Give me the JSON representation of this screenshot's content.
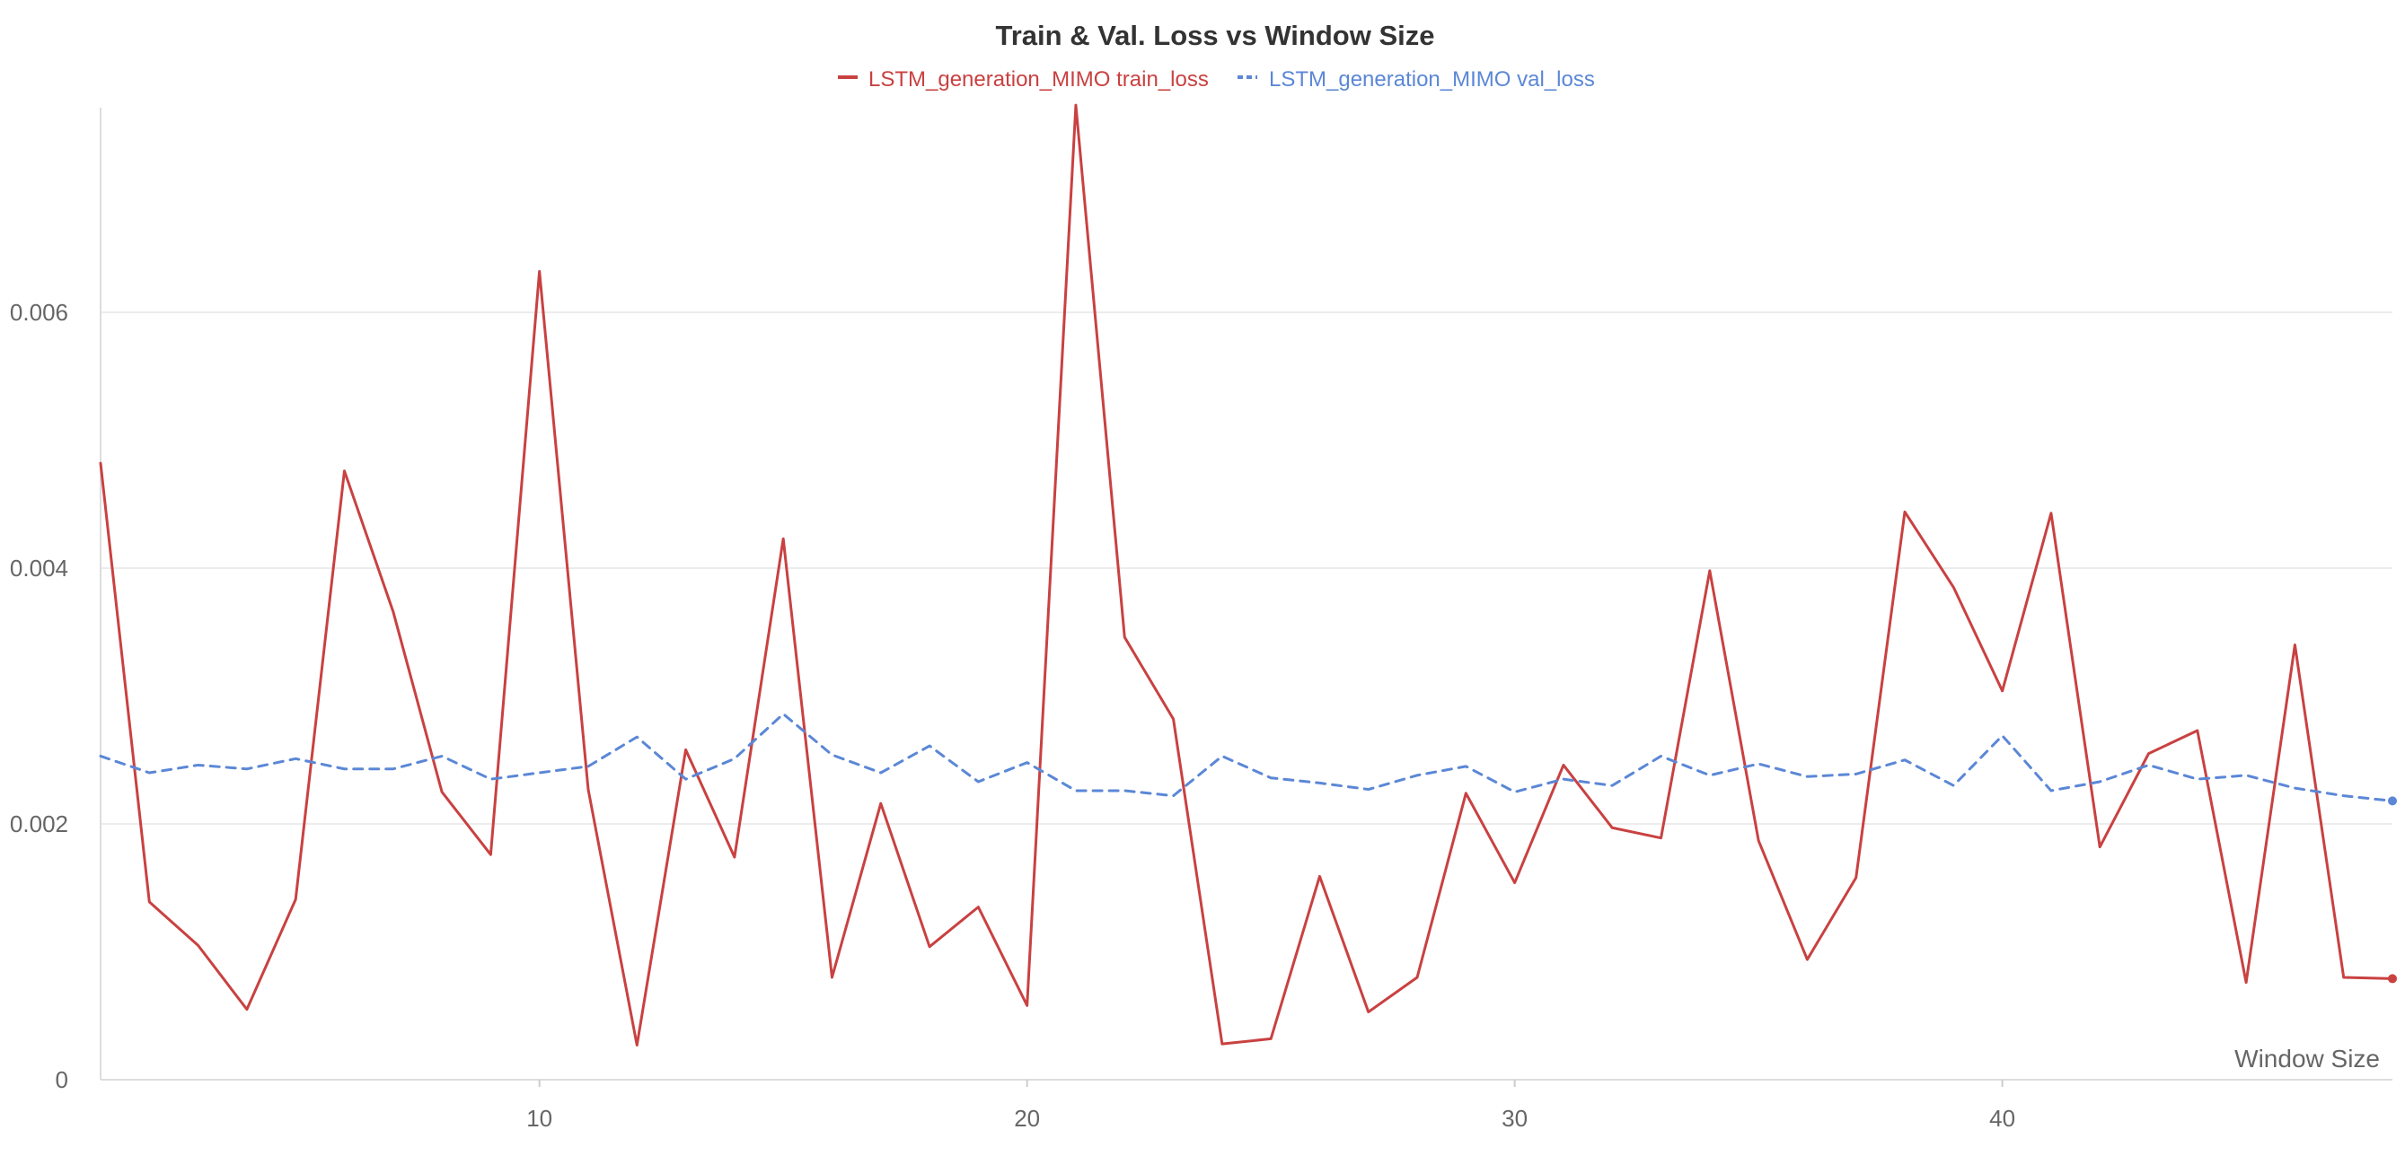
{
  "chart_data": {
    "type": "line",
    "title": "Train & Val. Loss vs Window Size",
    "xlabel": "Window Size",
    "ylabel": "",
    "xlim": [
      1,
      48
    ],
    "ylim": [
      0,
      0.0076
    ],
    "xticks": [
      10,
      20,
      30,
      40
    ],
    "yticks": [
      0,
      0.002,
      0.004,
      0.006
    ],
    "ytick_labels": [
      "0",
      "0.002",
      "0.004",
      "0.006"
    ],
    "grid": true,
    "legend_position": "top-center",
    "x": [
      1,
      2,
      3,
      4,
      5,
      6,
      7,
      8,
      9,
      10,
      11,
      12,
      13,
      14,
      15,
      16,
      17,
      18,
      19,
      20,
      21,
      22,
      23,
      24,
      25,
      26,
      27,
      28,
      29,
      30,
      31,
      32,
      33,
      34,
      35,
      36,
      37,
      38,
      39,
      40,
      41,
      42,
      43,
      44,
      45,
      46,
      47,
      48
    ],
    "series": [
      {
        "name": "LSTM_generation_MIMO train_loss",
        "color": "#c94141",
        "style": "solid",
        "values": [
          0.00482,
          0.00139,
          0.00105,
          0.00055,
          0.00141,
          0.00476,
          0.00366,
          0.00225,
          0.00176,
          0.00632,
          0.00227,
          0.00027,
          0.00258,
          0.00174,
          0.00423,
          0.0008,
          0.00216,
          0.00104,
          0.00135,
          0.00058,
          0.00762,
          0.00346,
          0.00282,
          0.00028,
          0.00032,
          0.00159,
          0.00053,
          0.0008,
          0.00224,
          0.00154,
          0.00246,
          0.00197,
          0.00189,
          0.00398,
          0.00187,
          0.00094,
          0.00158,
          0.00444,
          0.00385,
          0.00304,
          0.00443,
          0.00182,
          0.00255,
          0.00273,
          0.00076,
          0.0034,
          0.0008,
          0.00079
        ]
      },
      {
        "name": "LSTM_generation_MIMO val_loss",
        "color": "#5b87d6",
        "style": "dashed",
        "values": [
          0.00253,
          0.0024,
          0.00246,
          0.00243,
          0.00251,
          0.00243,
          0.00243,
          0.00253,
          0.00235,
          0.0024,
          0.00245,
          0.00268,
          0.00235,
          0.00251,
          0.00286,
          0.00254,
          0.0024,
          0.00261,
          0.00233,
          0.00248,
          0.00226,
          0.00226,
          0.00222,
          0.00253,
          0.00236,
          0.00232,
          0.00227,
          0.00238,
          0.00245,
          0.00225,
          0.00235,
          0.0023,
          0.00253,
          0.00238,
          0.00247,
          0.00237,
          0.00239,
          0.0025,
          0.0023,
          0.00269,
          0.00226,
          0.00233,
          0.00246,
          0.00235,
          0.00238,
          0.00228,
          0.00222,
          0.00218
        ]
      }
    ]
  }
}
